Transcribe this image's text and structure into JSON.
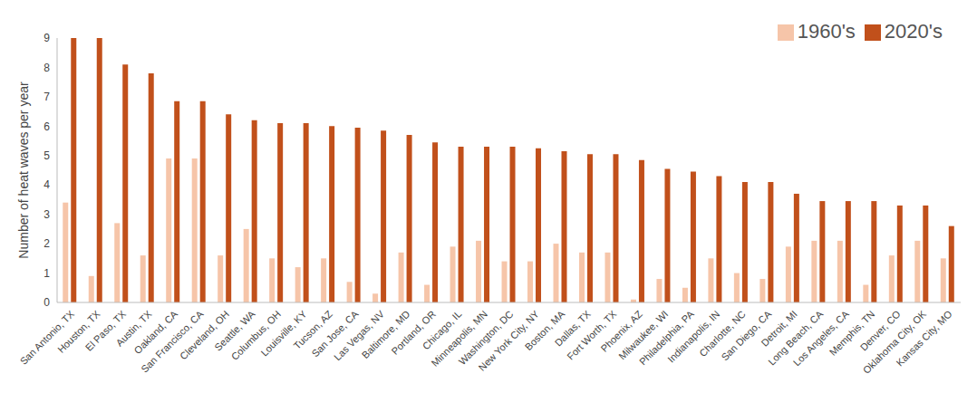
{
  "chart_data": {
    "type": "bar",
    "y_label": "Number of heat waves per year",
    "categories": [
      "San Antonio, TX",
      "Houston, TX",
      "El Paso, TX",
      "Austin, TX",
      "Oakland, CA",
      "San Francisco, CA",
      "Cleveland, OH",
      "Seattle, WA",
      "Columbus, OH",
      "Louisville, KY",
      "Tucson, AZ",
      "San Jose, CA",
      "Las Vegas, NV",
      "Baltimore, MD",
      "Portland, OR",
      "Chicago, IL",
      "Minneapolis, MN",
      "Washington, DC",
      "New York City, NY",
      "Boston, MA",
      "Dallas, TX",
      "Fort Worth, TX",
      "Phoenix, AZ",
      "Milwaukee, WI",
      "Philadelphia, PA",
      "Indianapolis, IN",
      "Charlotte, NC",
      "San Diego, CA",
      "Detroit, MI",
      "Long Beach, CA",
      "Los Angeles, CA",
      "Memphis, TN",
      "Denver, CO",
      "Oklahoma City, OK",
      "Kansas City, MO"
    ],
    "series": [
      {
        "name": "1960's",
        "color": "#f6c5a9",
        "values": [
          3.4,
          0.9,
          2.7,
          1.6,
          4.9,
          4.9,
          1.6,
          2.5,
          1.5,
          1.2,
          1.5,
          0.7,
          0.3,
          1.7,
          0.6,
          1.9,
          2.1,
          1.4,
          1.4,
          2.0,
          1.7,
          1.7,
          0.1,
          0.8,
          0.5,
          1.5,
          1.0,
          0.8,
          1.9,
          2.1,
          2.1,
          0.6,
          1.6,
          2.1,
          1.5
        ]
      },
      {
        "name": "2020's",
        "color": "#c1501b",
        "values": [
          9.0,
          9.0,
          8.1,
          7.8,
          6.85,
          6.85,
          6.4,
          6.2,
          6.1,
          6.1,
          6.0,
          5.95,
          5.85,
          5.7,
          5.45,
          5.3,
          5.3,
          5.3,
          5.25,
          5.15,
          5.05,
          5.05,
          4.85,
          4.55,
          4.45,
          4.3,
          4.1,
          4.1,
          3.7,
          3.45,
          3.45,
          3.45,
          3.3,
          3.3,
          2.6
        ]
      }
    ],
    "ylim": [
      0,
      9
    ],
    "yticks": [
      0,
      1,
      2,
      3,
      4,
      5,
      6,
      7,
      8,
      9
    ],
    "grid": false,
    "legend": "top-right"
  }
}
